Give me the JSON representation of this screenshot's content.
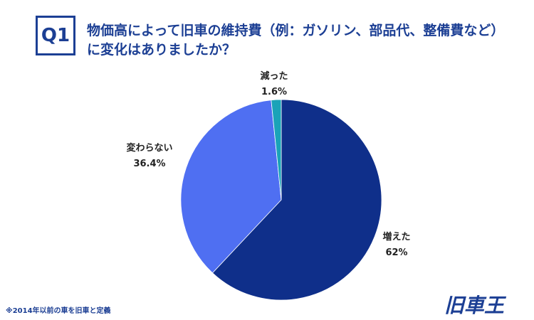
{
  "badge": "Q1",
  "question": {
    "line1": "物価高によって旧車の維持費（例：ガソリン、部品代、整備費など）",
    "line2": "に変化はありましたか？"
  },
  "chart_data": {
    "type": "pie",
    "title": "",
    "slices": [
      {
        "label": "増えた",
        "value": 62,
        "value_label": "62%",
        "color": "#0f2f8a"
      },
      {
        "label": "変わらない",
        "value": 36.4,
        "value_label": "36.4%",
        "color": "#4f6ff2"
      },
      {
        "label": "減った",
        "value": 1.6,
        "value_label": "1.6%",
        "color": "#1aa3b8"
      }
    ]
  },
  "footnote": "※2014年以前の車を旧車と定義",
  "logo": {
    "text": "旧車王",
    "color": "#1c3f94"
  }
}
